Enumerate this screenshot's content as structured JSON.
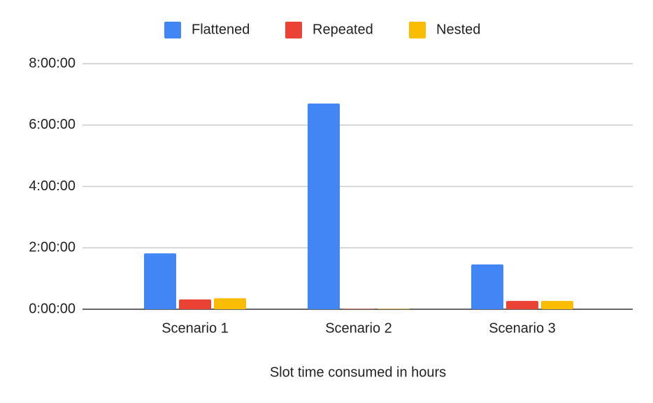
{
  "chart_data": {
    "type": "bar",
    "x_label": "Slot time consumed in hours",
    "categories": [
      "Scenario 1",
      "Scenario 2",
      "Scenario 3"
    ],
    "series": [
      {
        "name": "Flattened",
        "color": "#4285f4",
        "values": [
          1.82,
          6.7,
          1.46
        ]
      },
      {
        "name": "Repeated",
        "color": "#ea4335",
        "values": [
          0.32,
          0.01,
          0.27
        ]
      },
      {
        "name": "Nested",
        "color": "#fbbc04",
        "values": [
          0.36,
          0.01,
          0.27
        ]
      }
    ],
    "ylim": [
      0,
      8
    ],
    "yticks": [
      {
        "value": 0,
        "label": "0:00:00"
      },
      {
        "value": 2,
        "label": "2:00:00"
      },
      {
        "value": 4,
        "label": "4:00:00"
      },
      {
        "value": 6,
        "label": "6:00:00"
      },
      {
        "value": 8,
        "label": "8:00:00"
      }
    ],
    "grid": true,
    "legend": "top"
  }
}
